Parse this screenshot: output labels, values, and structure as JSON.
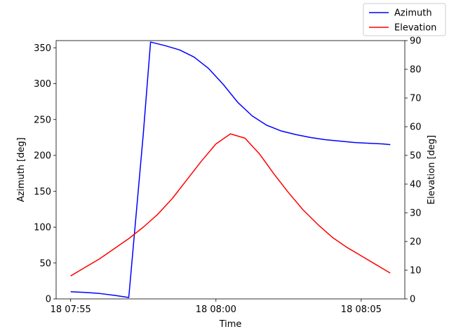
{
  "chart_data": {
    "type": "line",
    "xlabel": "Time",
    "ylabel_left": "Azimuth [deg]",
    "ylabel_right": "Elevation [deg]",
    "x_unit": "time",
    "x_range": [
      "07:54:30",
      "08:06:30"
    ],
    "x_ticks": [
      {
        "t": "07:55:00",
        "label": "18 07:55"
      },
      {
        "t": "08:00:00",
        "label": "18 08:00"
      },
      {
        "t": "08:05:00",
        "label": "18 08:05"
      }
    ],
    "ylim_left": [
      0,
      360
    ],
    "yticks_left": [
      0,
      50,
      100,
      150,
      200,
      250,
      300,
      350
    ],
    "ylim_right": [
      0,
      90
    ],
    "yticks_right": [
      0,
      10,
      20,
      30,
      40,
      50,
      60,
      70,
      80,
      90
    ],
    "grid": false,
    "legend_position": "top-right",
    "series": [
      {
        "name": "Azimuth",
        "color": "#0000ff",
        "axis": "left",
        "points": [
          [
            "07:55:00",
            10
          ],
          [
            "07:55:30",
            9
          ],
          [
            "07:56:00",
            7.5
          ],
          [
            "07:56:30",
            5
          ],
          [
            "07:57:00",
            2
          ],
          [
            "07:57:30",
            230
          ],
          [
            "07:57:45",
            358
          ],
          [
            "07:58:15",
            353
          ],
          [
            "07:58:45",
            347
          ],
          [
            "07:59:15",
            337
          ],
          [
            "07:59:45",
            321
          ],
          [
            "08:00:15",
            299
          ],
          [
            "08:00:45",
            274
          ],
          [
            "08:01:15",
            255
          ],
          [
            "08:01:45",
            242
          ],
          [
            "08:02:15",
            234
          ],
          [
            "08:02:45",
            229
          ],
          [
            "08:03:15",
            225
          ],
          [
            "08:03:45",
            222
          ],
          [
            "08:04:15",
            220
          ],
          [
            "08:04:45",
            218
          ],
          [
            "08:05:15",
            217
          ],
          [
            "08:05:45",
            216
          ],
          [
            "08:06:00",
            215
          ]
        ]
      },
      {
        "name": "Elevation",
        "color": "#ff0000",
        "axis": "right",
        "points": [
          [
            "07:55:00",
            8
          ],
          [
            "07:55:30",
            11
          ],
          [
            "07:56:00",
            14
          ],
          [
            "07:56:30",
            17.5
          ],
          [
            "07:57:00",
            21
          ],
          [
            "07:57:30",
            25
          ],
          [
            "07:58:00",
            29.5
          ],
          [
            "07:58:30",
            35
          ],
          [
            "07:59:00",
            41.5
          ],
          [
            "07:59:30",
            48
          ],
          [
            "08:00:00",
            54
          ],
          [
            "08:00:30",
            57.5
          ],
          [
            "08:01:00",
            56
          ],
          [
            "08:01:30",
            50.5
          ],
          [
            "08:02:00",
            43.5
          ],
          [
            "08:02:30",
            37
          ],
          [
            "08:03:00",
            31
          ],
          [
            "08:03:30",
            26
          ],
          [
            "08:04:00",
            21.5
          ],
          [
            "08:04:30",
            18
          ],
          [
            "08:05:00",
            15
          ],
          [
            "08:05:30",
            12
          ],
          [
            "08:06:00",
            9
          ]
        ]
      }
    ]
  }
}
